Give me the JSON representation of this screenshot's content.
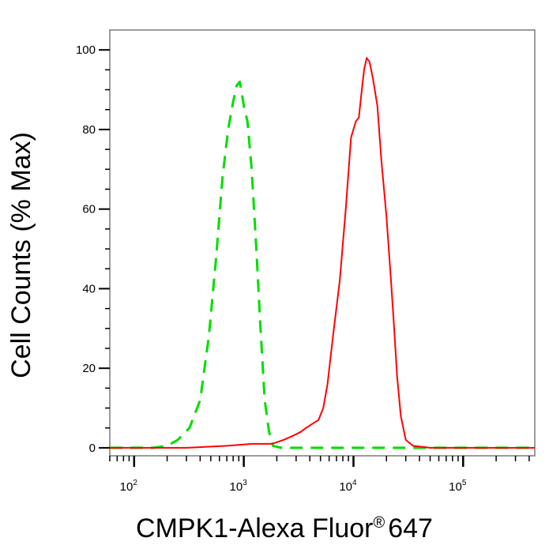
{
  "chart_data": {
    "type": "line",
    "title": "",
    "xlabel": "CMPK1-Alexa Fluor® 647",
    "xlabel_main": "CMPK1-Alexa Fluor",
    "xlabel_sup": "®",
    "xlabel_suffix": "647",
    "ylabel": "Cell Counts (% Max)",
    "x_scale": "log",
    "xlim": [
      60,
      450000
    ],
    "ylim": [
      -2,
      105
    ],
    "grid": false,
    "legend": "none",
    "y_ticks": [
      "0",
      "20",
      "40",
      "60",
      "80",
      "100"
    ],
    "x_tick_bases": [
      "10",
      "10",
      "10",
      "10"
    ],
    "x_tick_exponents": [
      "2",
      "3",
      "4",
      "5"
    ],
    "series": [
      {
        "color": "#00dd00",
        "style": "dashed",
        "x": [
          60,
          150,
          200,
          250,
          320,
          400,
          480,
          560,
          640,
          720,
          800,
          860,
          920,
          960,
          1000,
          1080,
          1180,
          1300,
          1420,
          1550,
          1700,
          1850,
          2200,
          4000,
          10000,
          40000,
          450000
        ],
        "y": [
          0,
          0,
          0.5,
          2,
          5,
          12,
          28,
          48,
          68,
          80,
          87,
          91,
          92,
          89,
          86,
          82,
          70,
          50,
          30,
          12,
          4,
          0.5,
          0,
          0,
          0,
          0,
          0
        ]
      },
      {
        "color": "#ff0000",
        "style": "solid",
        "x": [
          60,
          300,
          700,
          1200,
          1800,
          2300,
          2800,
          3300,
          3700,
          4200,
          4800,
          5300,
          5800,
          6500,
          7500,
          8500,
          9500,
          10500,
          11200,
          11800,
          12500,
          13200,
          14000,
          15000,
          16500,
          18000,
          20000,
          22000,
          23500,
          25000,
          27000,
          30000,
          35000,
          50000,
          450000
        ],
        "y": [
          0,
          0,
          0.5,
          1,
          1,
          2,
          3,
          4,
          5,
          6,
          7,
          10,
          16,
          28,
          42,
          60,
          78,
          82,
          83,
          89,
          95,
          98,
          97,
          93,
          86,
          72,
          58,
          42,
          30,
          18,
          8,
          2,
          0.5,
          0,
          0
        ]
      }
    ]
  }
}
